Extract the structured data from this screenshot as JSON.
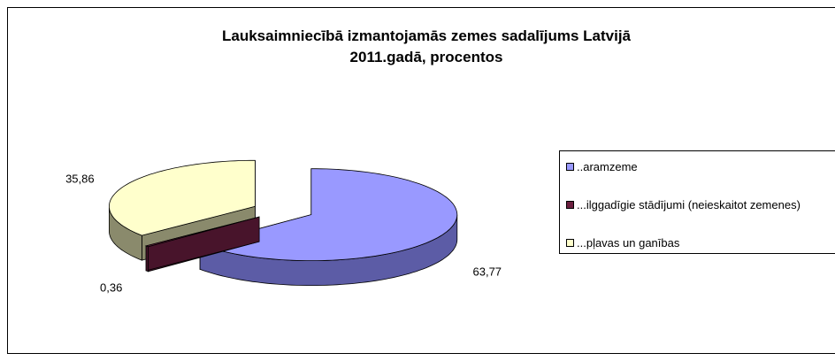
{
  "chart_data": {
    "type": "pie3d",
    "title": [
      "Lauksaimniecībā izmantojamās zemes sadalījums Latvijā",
      "2011.gadā, procentos"
    ],
    "categories": [
      "..aramzeme",
      "...ilggadīgie stādījumi (neieskaitot zemenes)",
      "...pļavas un ganības"
    ],
    "values": [
      63.77,
      0.36,
      35.86
    ],
    "value_labels": [
      "63,77",
      "0,36",
      "35,86"
    ],
    "colors": [
      "#9999ff",
      "#6b1f3f",
      "#ffffcc"
    ],
    "side_colors": [
      "#5c5ca6",
      "#48142b",
      "#8a8a6c"
    ],
    "legend": "right"
  }
}
